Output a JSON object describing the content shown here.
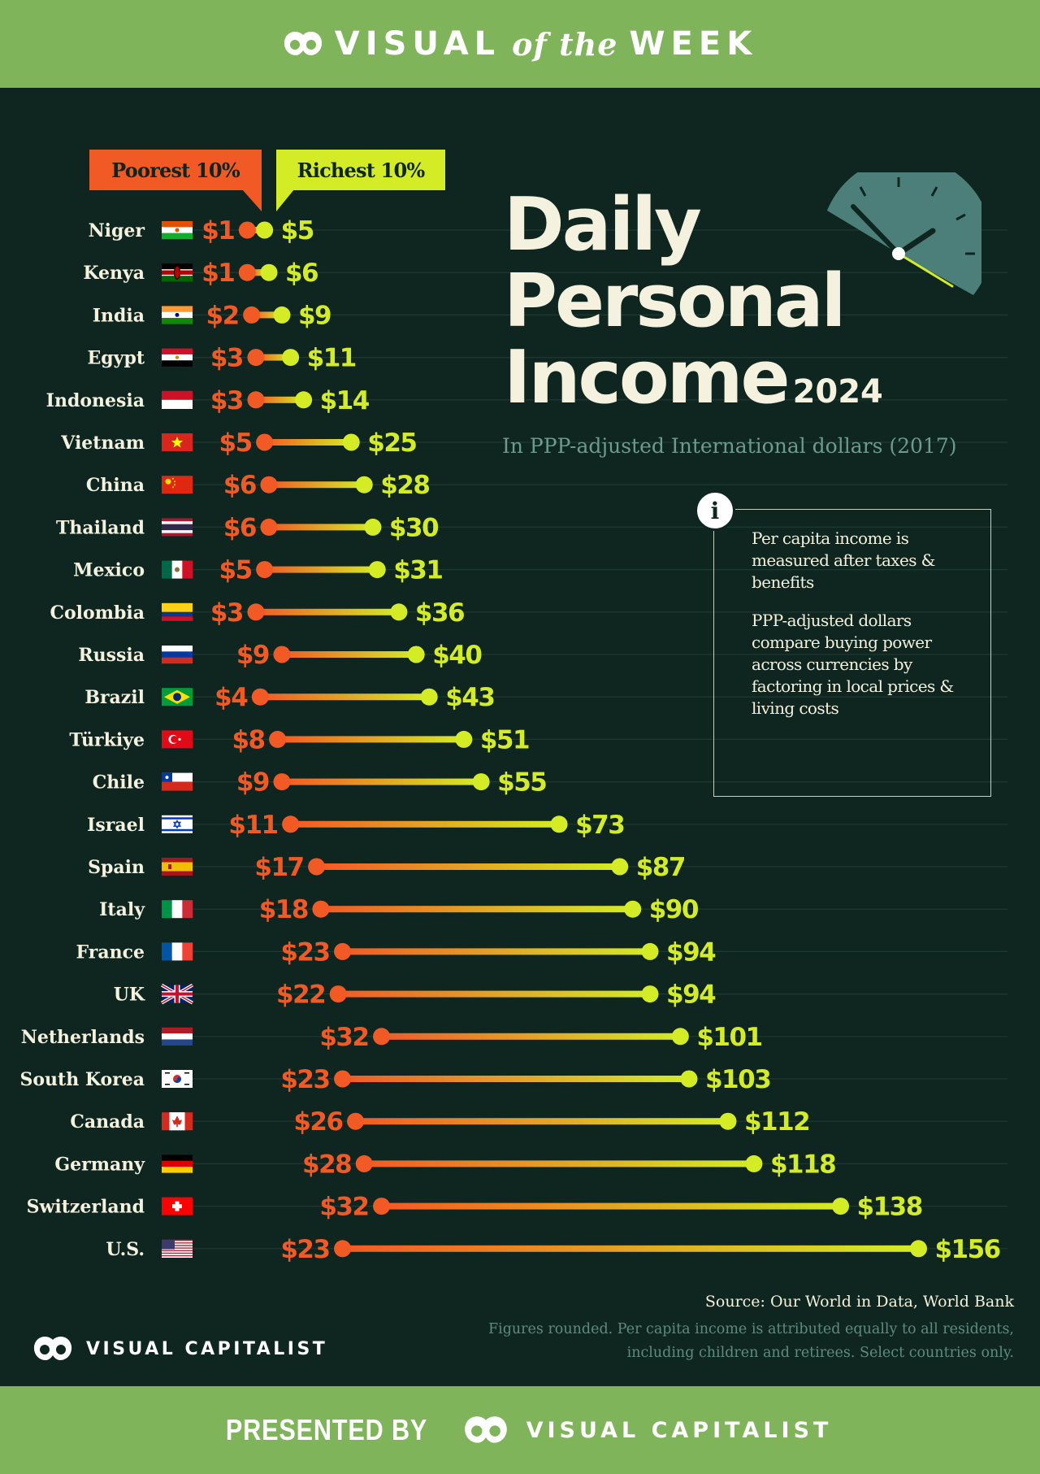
{
  "header": {
    "brand_left": "VISUAL",
    "brand_mid": "of the",
    "brand_right": "WEEK"
  },
  "title": {
    "line1": "Daily",
    "line2": "Personal",
    "line3": "Income",
    "year": "2024"
  },
  "subtitle": "In PPP-adjusted International dollars (2017)",
  "legend": {
    "poorest": "Poorest 10%",
    "richest": "Richest 10%"
  },
  "info": {
    "p1": "Per capita income is measured after taxes & benefits",
    "p2": "PPP-adjusted dollars compare buying power across currencies by factoring in local prices & living costs"
  },
  "source": "Source: Our World in Data, World Bank",
  "footnote": {
    "line1": "Figures rounded. Per capita income is attributed equally to all residents,",
    "line2": "including children and retirees. Select countries only."
  },
  "footer": {
    "brand": "VISUAL CAPITALIST"
  },
  "bottom_banner": {
    "presented": "PRESENTED BY",
    "brand": "VISUAL CAPITALIST"
  },
  "colors": {
    "poorest": "#f25a25",
    "richest": "#d3ec26",
    "background": "#0f2620",
    "banner": "#7fb45a",
    "text": "#f4f1de"
  },
  "chart_data": {
    "type": "dumbbell",
    "series": [
      {
        "name": "Poorest 10%"
      },
      {
        "name": "Richest 10%"
      }
    ],
    "rows": [
      {
        "country": "Niger",
        "flag": "niger-flag",
        "low": 1,
        "high": 5
      },
      {
        "country": "Kenya",
        "flag": "kenya-flag",
        "low": 1,
        "high": 6
      },
      {
        "country": "India",
        "flag": "india-flag",
        "low": 2,
        "high": 9
      },
      {
        "country": "Egypt",
        "flag": "egypt-flag",
        "low": 3,
        "high": 11
      },
      {
        "country": "Indonesia",
        "flag": "indonesia-flag",
        "low": 3,
        "high": 14
      },
      {
        "country": "Vietnam",
        "flag": "vietnam-flag",
        "low": 5,
        "high": 25
      },
      {
        "country": "China",
        "flag": "china-flag",
        "low": 6,
        "high": 28
      },
      {
        "country": "Thailand",
        "flag": "thailand-flag",
        "low": 6,
        "high": 30
      },
      {
        "country": "Mexico",
        "flag": "mexico-flag",
        "low": 5,
        "high": 31
      },
      {
        "country": "Colombia",
        "flag": "colombia-flag",
        "low": 3,
        "high": 36
      },
      {
        "country": "Russia",
        "flag": "russia-flag",
        "low": 9,
        "high": 40
      },
      {
        "country": "Brazil",
        "flag": "brazil-flag",
        "low": 4,
        "high": 43
      },
      {
        "country": "Türkiye",
        "flag": "turkiye-flag",
        "low": 8,
        "high": 51
      },
      {
        "country": "Chile",
        "flag": "chile-flag",
        "low": 9,
        "high": 55
      },
      {
        "country": "Israel",
        "flag": "israel-flag",
        "low": 11,
        "high": 73
      },
      {
        "country": "Spain",
        "flag": "spain-flag",
        "low": 17,
        "high": 87
      },
      {
        "country": "Italy",
        "flag": "italy-flag",
        "low": 18,
        "high": 90
      },
      {
        "country": "France",
        "flag": "france-flag",
        "low": 23,
        "high": 94
      },
      {
        "country": "UK",
        "flag": "uk-flag",
        "low": 22,
        "high": 94
      },
      {
        "country": "Netherlands",
        "flag": "netherlands-flag",
        "low": 32,
        "high": 101
      },
      {
        "country": "South Korea",
        "flag": "south-korea-flag",
        "low": 23,
        "high": 103
      },
      {
        "country": "Canada",
        "flag": "canada-flag",
        "low": 26,
        "high": 112
      },
      {
        "country": "Germany",
        "flag": "germany-flag",
        "low": 28,
        "high": 118
      },
      {
        "country": "Switzerland",
        "flag": "switzerland-flag",
        "low": 32,
        "high": 138
      },
      {
        "country": "U.S.",
        "flag": "us-flag",
        "low": 23,
        "high": 156
      }
    ]
  }
}
